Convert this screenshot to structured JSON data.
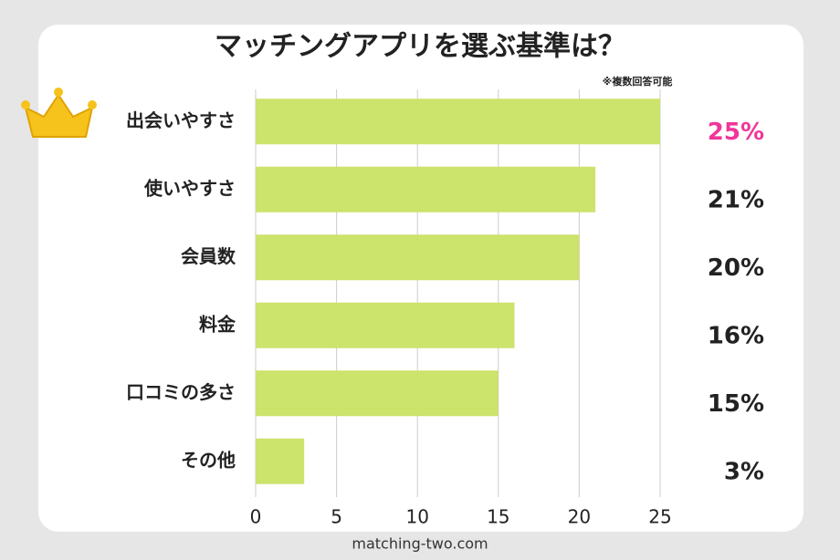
{
  "chart_data": {
    "type": "bar",
    "orientation": "horizontal",
    "title": "マッチングアプリを選ぶ基準は？",
    "note": "※複数回答可能",
    "source": "matching-two.com",
    "categories": [
      "出会いやすさ",
      "使いやすさ",
      "会員数",
      "料金",
      "口コミの多さ",
      "その他"
    ],
    "values": [
      25,
      21,
      20,
      16,
      15,
      3
    ],
    "value_labels": [
      "25%",
      "21%",
      "20%",
      "16%",
      "15%",
      "3%"
    ],
    "value_label_colors": [
      "#f0359a",
      "#222222",
      "#222222",
      "#222222",
      "#222222",
      "#222222"
    ],
    "color": "#cce36c",
    "xlim": [
      0,
      25
    ],
    "xticks": [
      0,
      5,
      10,
      15,
      20,
      25
    ],
    "grid": true
  }
}
